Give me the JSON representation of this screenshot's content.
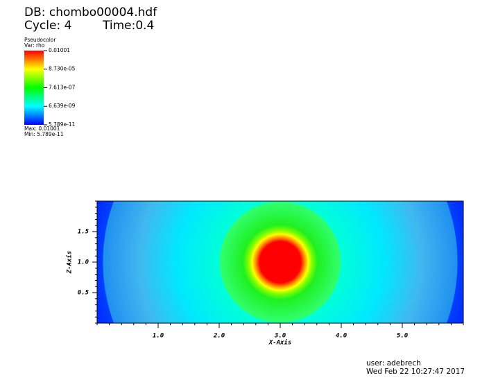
{
  "chart_data": {
    "type": "pseudocolor",
    "db": "DB: chombo00004.hdf",
    "cycle": "Cycle: 4",
    "time": "Time:0.4",
    "legend": {
      "title": "Pseudocolor",
      "variable": "Var: rho",
      "scale": "log",
      "ticks": [
        {
          "value": 0.01001,
          "label": "0.01001"
        },
        {
          "value": 8.73e-05,
          "label": "8.730e-05"
        },
        {
          "value": 7.613e-07,
          "label": "7.613e-07"
        },
        {
          "value": 6.639e-09,
          "label": "6.639e-09"
        },
        {
          "value": 5.789e-11,
          "label": "5.789e-11"
        }
      ],
      "max": "Max: 0.01001",
      "min": "Min: 5.789e-11"
    },
    "xlabel": "X-Axis",
    "ylabel": "Z-Axis",
    "xlim": [
      0,
      6
    ],
    "ylim": [
      0,
      2
    ],
    "xticks": [
      {
        "value": 1,
        "label": "1.0"
      },
      {
        "value": 2,
        "label": "2.0"
      },
      {
        "value": 3,
        "label": "3.0"
      },
      {
        "value": 4,
        "label": "4.0"
      },
      {
        "value": 5,
        "label": "5.0"
      }
    ],
    "yticks": [
      {
        "value": 0.5,
        "label": "0.5"
      },
      {
        "value": 1,
        "label": "1.0"
      },
      {
        "value": 1.5,
        "label": "1.5"
      }
    ],
    "user": "user: adebrech",
    "date": "Wed Feb 22 10:27:47 2017"
  }
}
